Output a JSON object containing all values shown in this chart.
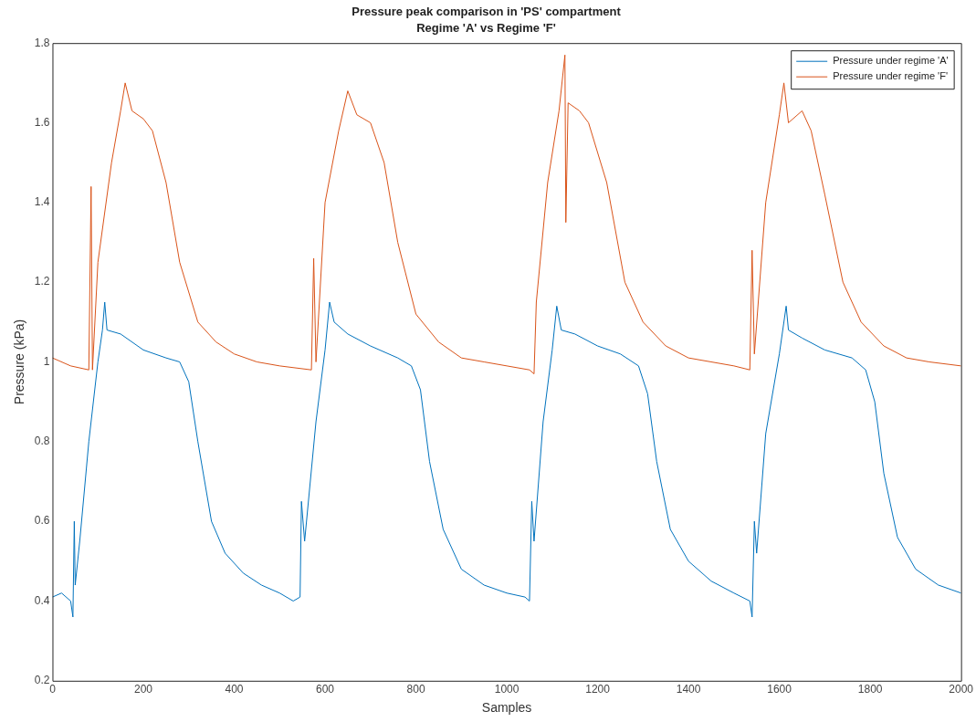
{
  "chart_data": {
    "type": "line",
    "title": "Pressure peak comparison in 'PS' compartment",
    "subtitle": "Regime 'A' vs Regime 'F'",
    "xlabel": "Samples",
    "ylabel": "Pressure (kPa)",
    "xlim": [
      0,
      2000
    ],
    "xticks": [
      0,
      200,
      400,
      600,
      800,
      1000,
      1200,
      1400,
      1600,
      1800,
      2000
    ],
    "ylim": [
      0.2,
      1.8
    ],
    "yticks": [
      0.2,
      0.4,
      0.6,
      0.8,
      1,
      1.2,
      1.4,
      1.6,
      1.8
    ],
    "legend": "top right",
    "marker": "none",
    "line_style": "solid",
    "series": [
      {
        "name": "Pressure under regime 'A'",
        "color": "#0072bd",
        "x": [
          0,
          20,
          40,
          45,
          48,
          50,
          60,
          80,
          100,
          110,
          115,
          120,
          150,
          200,
          250,
          280,
          300,
          320,
          350,
          380,
          420,
          460,
          500,
          530,
          545,
          548,
          555,
          580,
          600,
          610,
          620,
          650,
          700,
          760,
          790,
          810,
          830,
          860,
          900,
          950,
          1000,
          1040,
          1050,
          1055,
          1060,
          1080,
          1100,
          1110,
          1120,
          1150,
          1200,
          1250,
          1290,
          1310,
          1330,
          1360,
          1400,
          1450,
          1500,
          1535,
          1540,
          1545,
          1550,
          1570,
          1600,
          1615,
          1620,
          1650,
          1700,
          1760,
          1790,
          1810,
          1830,
          1860,
          1900,
          1950,
          2000
        ],
        "values": [
          0.41,
          0.42,
          0.4,
          0.36,
          0.6,
          0.44,
          0.55,
          0.8,
          1.0,
          1.08,
          1.15,
          1.08,
          1.07,
          1.03,
          1.01,
          1.0,
          0.95,
          0.8,
          0.6,
          0.52,
          0.47,
          0.44,
          0.42,
          0.4,
          0.41,
          0.65,
          0.55,
          0.85,
          1.03,
          1.15,
          1.1,
          1.07,
          1.04,
          1.01,
          0.99,
          0.93,
          0.75,
          0.58,
          0.48,
          0.44,
          0.42,
          0.41,
          0.4,
          0.65,
          0.55,
          0.85,
          1.03,
          1.14,
          1.08,
          1.07,
          1.04,
          1.02,
          0.99,
          0.92,
          0.75,
          0.58,
          0.5,
          0.45,
          0.42,
          0.4,
          0.36,
          0.6,
          0.52,
          0.82,
          1.02,
          1.14,
          1.08,
          1.06,
          1.03,
          1.01,
          0.98,
          0.9,
          0.72,
          0.56,
          0.48,
          0.44,
          0.42
        ]
      },
      {
        "name": "Pressure under regime 'F'",
        "color": "#d95319",
        "x": [
          0,
          40,
          80,
          85,
          88,
          100,
          130,
          150,
          160,
          175,
          200,
          220,
          250,
          280,
          320,
          360,
          400,
          450,
          500,
          570,
          575,
          580,
          600,
          630,
          650,
          670,
          700,
          730,
          760,
          800,
          850,
          900,
          950,
          1000,
          1050,
          1060,
          1065,
          1090,
          1115,
          1128,
          1130,
          1135,
          1160,
          1180,
          1220,
          1260,
          1300,
          1350,
          1400,
          1450,
          1500,
          1535,
          1540,
          1545,
          1570,
          1600,
          1610,
          1620,
          1650,
          1670,
          1700,
          1740,
          1780,
          1830,
          1880,
          1930,
          2000
        ],
        "values": [
          1.01,
          0.99,
          0.98,
          1.44,
          0.98,
          1.25,
          1.5,
          1.63,
          1.7,
          1.63,
          1.61,
          1.58,
          1.45,
          1.25,
          1.1,
          1.05,
          1.02,
          1.0,
          0.99,
          0.98,
          1.26,
          1.0,
          1.4,
          1.58,
          1.68,
          1.62,
          1.6,
          1.5,
          1.3,
          1.12,
          1.05,
          1.01,
          1.0,
          0.99,
          0.98,
          0.97,
          1.15,
          1.45,
          1.63,
          1.77,
          1.35,
          1.65,
          1.63,
          1.6,
          1.45,
          1.2,
          1.1,
          1.04,
          1.01,
          1.0,
          0.99,
          0.98,
          1.28,
          1.02,
          1.4,
          1.62,
          1.7,
          1.6,
          1.63,
          1.58,
          1.42,
          1.2,
          1.1,
          1.04,
          1.01,
          1.0,
          0.99
        ]
      }
    ]
  }
}
